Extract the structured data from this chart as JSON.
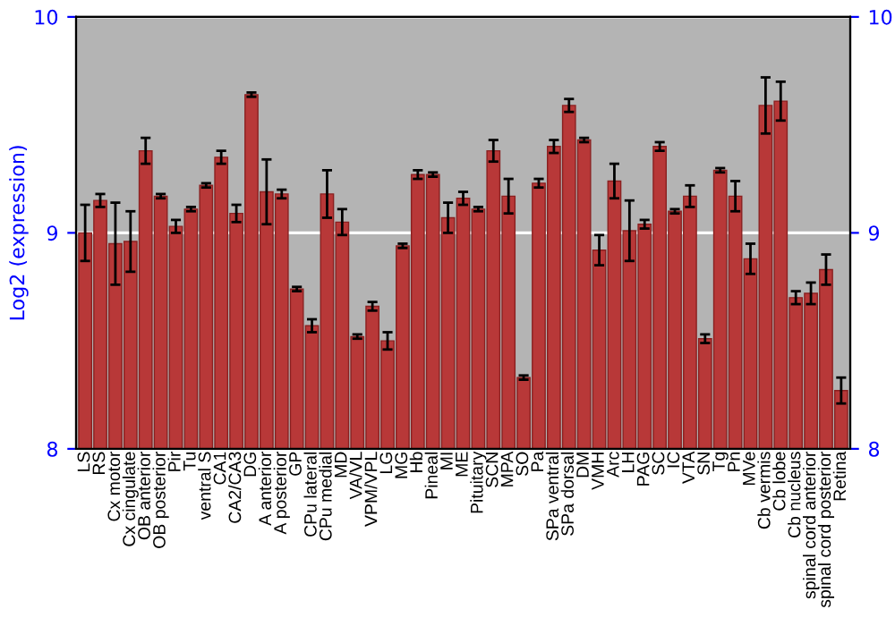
{
  "chart_data": {
    "type": "bar",
    "ylabel": "Log2 (expression)",
    "categories": [
      "LS",
      "RS",
      "Cx motor",
      "Cx cingulate",
      "OB anterior",
      "OB posterior",
      "Pir",
      "Tu",
      "ventral S",
      "CA1",
      "CA2/CA3",
      "DG",
      "A anterior",
      "A posterior",
      "GP",
      "CPu lateral",
      "CPu medial",
      "MD",
      "VA/VL",
      "VPM/VPL",
      "LG",
      "MG",
      "Hb",
      "Pineal",
      "MI",
      "ME",
      "Pituitary",
      "SCN",
      "MPA",
      "SO",
      "Pa",
      "SPa ventral",
      "SPa dorsal",
      "DM",
      "VMH",
      "Arc",
      "LH",
      "PAG",
      "SC",
      "IC",
      "VTA",
      "SN",
      "Tg",
      "Pn",
      "MVe",
      "Cb vermis",
      "Cb lobe",
      "Cb nucleus",
      "spinal cord anterior",
      "spinal cord posterior",
      "Retina"
    ],
    "values": [
      9.0,
      9.15,
      8.95,
      8.96,
      9.38,
      9.17,
      9.03,
      9.11,
      9.22,
      9.35,
      9.09,
      9.64,
      9.19,
      9.18,
      8.74,
      8.57,
      9.18,
      9.05,
      8.52,
      8.66,
      8.5,
      8.94,
      9.27,
      9.27,
      9.07,
      9.16,
      9.11,
      9.38,
      9.17,
      8.33,
      9.23,
      9.4,
      9.59,
      9.43,
      8.92,
      9.24,
      9.01,
      9.04,
      9.4,
      9.1,
      9.17,
      8.51,
      9.29,
      9.17,
      8.88,
      9.59,
      9.61,
      8.7,
      8.72,
      8.83,
      8.27
    ],
    "errors": [
      0.13,
      0.03,
      0.19,
      0.14,
      0.06,
      0.01,
      0.03,
      0.01,
      0.01,
      0.03,
      0.04,
      0.01,
      0.15,
      0.02,
      0.01,
      0.03,
      0.11,
      0.06,
      0.01,
      0.02,
      0.04,
      0.01,
      0.02,
      0.01,
      0.07,
      0.03,
      0.01,
      0.05,
      0.08,
      0.01,
      0.02,
      0.03,
      0.03,
      0.01,
      0.07,
      0.08,
      0.14,
      0.02,
      0.02,
      0.01,
      0.05,
      0.02,
      0.01,
      0.07,
      0.07,
      0.13,
      0.09,
      0.03,
      0.05,
      0.07,
      0.06
    ],
    "color": "#b83838",
    "ylim": [
      8,
      10
    ],
    "yticks": [
      8,
      9,
      10
    ],
    "y2lim": [
      8,
      10
    ],
    "y2ticks": [
      8,
      9,
      10
    ],
    "grid": "y"
  }
}
